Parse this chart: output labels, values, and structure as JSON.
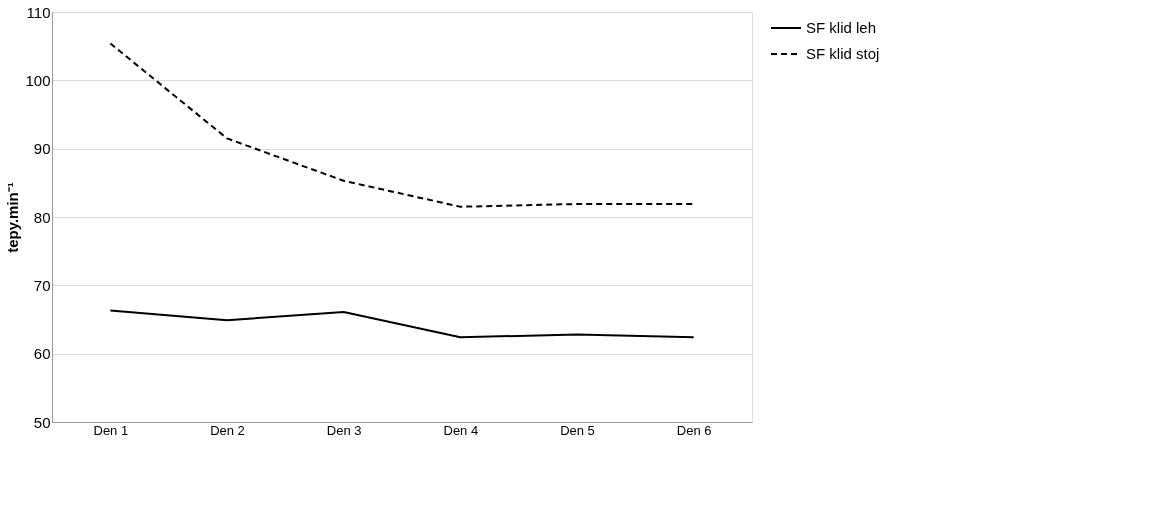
{
  "chart_data": {
    "type": "line",
    "ylabel": "tepy.min⁻¹",
    "categories": [
      "Den 1",
      "Den 2",
      "Den 3",
      "Den 4",
      "Den 5",
      "Den 6"
    ],
    "series": [
      {
        "name": "SF klid leh",
        "color": "#000000",
        "line_style": "solid",
        "values": [
          66.3,
          64.9,
          66.1,
          62.4,
          62.8,
          62.4
        ]
      },
      {
        "name": "SF klid stoj",
        "color": "#000000",
        "line_style": "dashed",
        "values": [
          105.4,
          91.5,
          85.3,
          81.5,
          81.9,
          81.9
        ]
      }
    ],
    "ylim": [
      50,
      110
    ],
    "yticks": [
      50,
      60,
      70,
      80,
      90,
      100,
      110
    ],
    "grid": "y",
    "legend": "right",
    "marker": "none"
  }
}
